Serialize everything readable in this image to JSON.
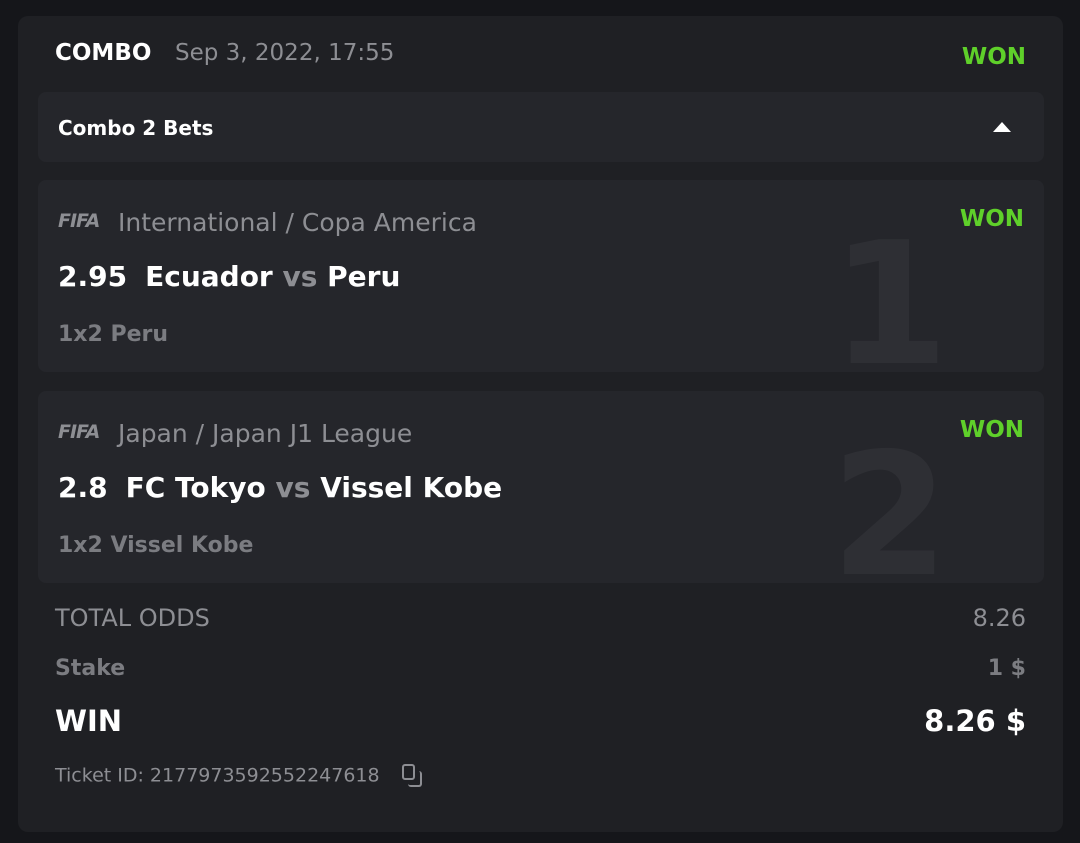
{
  "header": {
    "type": "COMBO",
    "date": "Sep 3, 2022, 17:55",
    "status": "WON"
  },
  "combo_bar": {
    "title": "Combo 2 Bets",
    "icon": "caret-up-icon"
  },
  "bets": [
    {
      "index": "1",
      "logo": "FIFA",
      "league": "International / Copa America",
      "status": "WON",
      "odds": "2.95",
      "home": "Ecuador",
      "vs": "vs",
      "away": "Peru",
      "pick": "1x2 Peru"
    },
    {
      "index": "2",
      "logo": "FIFA",
      "league": "Japan / Japan J1 League",
      "status": "WON",
      "odds": "2.8",
      "home": "FC Tokyo",
      "vs": "vs",
      "away": "Vissel Kobe",
      "pick": "1x2 Vissel Kobe"
    }
  ],
  "summary": {
    "total_odds_label": "TOTAL ODDS",
    "total_odds": "8.26",
    "stake_label": "Stake",
    "stake": "1 $",
    "win_label": "WIN",
    "win": "8.26 $"
  },
  "ticket": {
    "label": "Ticket ID: 2177973592552247618"
  },
  "colors": {
    "won": "#5fd02a",
    "background": "#1f2024",
    "panel": "#25262b"
  }
}
